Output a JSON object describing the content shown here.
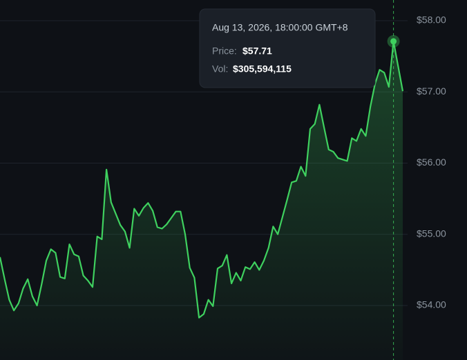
{
  "chart_data": {
    "type": "line",
    "values": [
      54.68,
      54.37,
      54.08,
      53.93,
      54.03,
      54.24,
      54.37,
      54.13,
      54.0,
      54.3,
      54.63,
      54.79,
      54.74,
      54.4,
      54.38,
      54.86,
      54.72,
      54.69,
      54.42,
      54.35,
      54.26,
      54.97,
      54.93,
      55.91,
      55.45,
      55.29,
      55.13,
      55.04,
      54.81,
      55.36,
      55.26,
      55.37,
      55.44,
      55.33,
      55.1,
      55.08,
      55.14,
      55.23,
      55.32,
      55.32,
      55.0,
      54.53,
      54.39,
      53.83,
      53.88,
      54.08,
      53.99,
      54.52,
      54.56,
      54.71,
      54.31,
      54.46,
      54.35,
      54.54,
      54.51,
      54.61,
      54.5,
      54.63,
      54.81,
      55.11,
      55.0,
      55.24,
      55.48,
      55.73,
      55.75,
      55.95,
      55.82,
      56.48,
      56.55,
      56.82,
      56.5,
      56.19,
      56.16,
      56.07,
      56.05,
      56.03,
      56.35,
      56.31,
      56.48,
      56.38,
      56.79,
      57.11,
      57.31,
      57.27,
      57.07,
      57.71,
      57.36,
      57.01
    ],
    "color": "#3fd15f",
    "ylim": [
      53.235,
      58.29
    ],
    "yticks": [
      {
        "value": 54,
        "label": "$54.00"
      },
      {
        "value": 55,
        "label": "$55.00"
      },
      {
        "value": 56,
        "label": "$56.00"
      },
      {
        "value": 57,
        "label": "$57.00"
      },
      {
        "value": 58,
        "label": "$58.00"
      }
    ],
    "grid": true,
    "hover_index": 85,
    "tooltip": {
      "date": "Aug 13, 2026, 18:00:00 GMT+8",
      "price_label": "Price:",
      "price": "$57.71",
      "volume_label": "Vol:",
      "volume": "$305,594,115"
    }
  }
}
